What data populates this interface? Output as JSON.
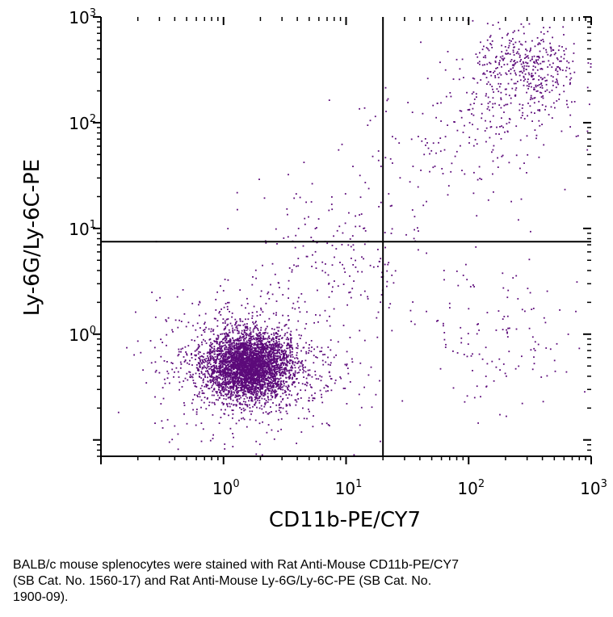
{
  "caption": {
    "lines": [
      "BALB/c mouse splenocytes were stained with Rat Anti-Mouse CD11b-PE/CY7",
      "(SB Cat. No. 1560-17) and Rat Anti-Mouse Ly-6G/Ly-6C-PE (SB Cat. No.",
      "1900-09)."
    ]
  },
  "chart_data": {
    "type": "scatter",
    "xlabel": "CD11b-PE/CY7",
    "ylabel": "Ly-6G/Ly-6C-PE",
    "x_scale": "log",
    "y_scale": "log",
    "xlim": [
      0.1,
      1000
    ],
    "ylim": [
      0.07,
      1000
    ],
    "x_ticks": [
      {
        "base": "10",
        "exp": "0",
        "value": 1
      },
      {
        "base": "10",
        "exp": "1",
        "value": 10
      },
      {
        "base": "10",
        "exp": "2",
        "value": 100
      },
      {
        "base": "10",
        "exp": "3",
        "value": 1000
      }
    ],
    "y_ticks": [
      {
        "base": "10",
        "exp": "0",
        "value": 1
      },
      {
        "base": "10",
        "exp": "1",
        "value": 10
      },
      {
        "base": "10",
        "exp": "2",
        "value": 100
      },
      {
        "base": "10",
        "exp": "3",
        "value": 1000
      }
    ],
    "quadrant_gates": {
      "x": 20,
      "y": 7.5
    },
    "point_color": "#5c0a7a",
    "line_color": "#000000",
    "populations": [
      {
        "center": [
          1.6,
          0.5
        ],
        "spread": [
          0.17,
          0.15
        ],
        "count": 3400
      },
      {
        "center": [
          1.6,
          0.5
        ],
        "spread": [
          0.38,
          0.33
        ],
        "count": 900
      },
      {
        "center": [
          300,
          300
        ],
        "spread": [
          0.22,
          0.22
        ],
        "count": 420
      },
      {
        "center": [
          150,
          120
        ],
        "spread": [
          0.35,
          0.35
        ],
        "count": 160
      },
      {
        "center": [
          150,
          1.0
        ],
        "spread": [
          0.4,
          0.35
        ],
        "count": 110
      },
      {
        "center": [
          8,
          5
        ],
        "spread": [
          0.35,
          0.4
        ],
        "count": 200
      },
      {
        "center": [
          40,
          40
        ],
        "spread": [
          0.35,
          0.45
        ],
        "count": 70
      },
      {
        "center": [
          300,
          0.4
        ],
        "spread": [
          0.25,
          0.2
        ],
        "count": 20
      }
    ]
  }
}
